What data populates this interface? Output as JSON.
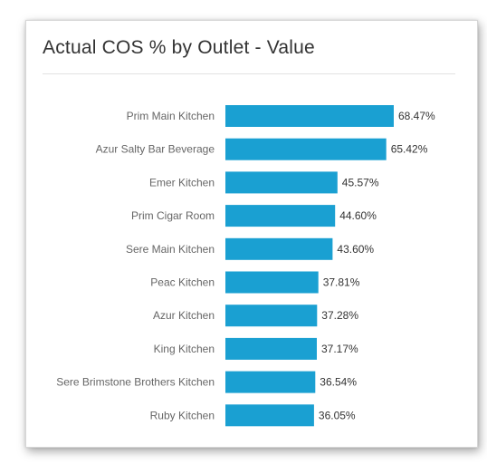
{
  "card": {
    "title": "Actual COS % by Outlet - Value"
  },
  "chart_data": {
    "type": "bar",
    "orientation": "horizontal",
    "title": "Actual COS % by Outlet - Value",
    "categories": [
      "Prim Main Kitchen",
      "Azur Salty Bar Beverage",
      "Emer Kitchen",
      "Prim Cigar Room",
      "Sere Main Kitchen",
      "Peac Kitchen",
      "Azur Kitchen",
      "King Kitchen",
      "Sere Brimstone Brothers Kitchen",
      "Ruby Kitchen"
    ],
    "values": [
      68.47,
      65.42,
      45.57,
      44.6,
      43.6,
      37.81,
      37.28,
      37.17,
      36.54,
      36.05
    ],
    "value_labels": [
      "68.47%",
      "65.42%",
      "45.57%",
      "44.60%",
      "43.60%",
      "37.81%",
      "37.28%",
      "37.17%",
      "36.54%",
      "36.05%"
    ],
    "xlim": [
      0,
      68.47
    ],
    "grid": false,
    "legend": "none",
    "bar_color": "#1aa0d2"
  }
}
